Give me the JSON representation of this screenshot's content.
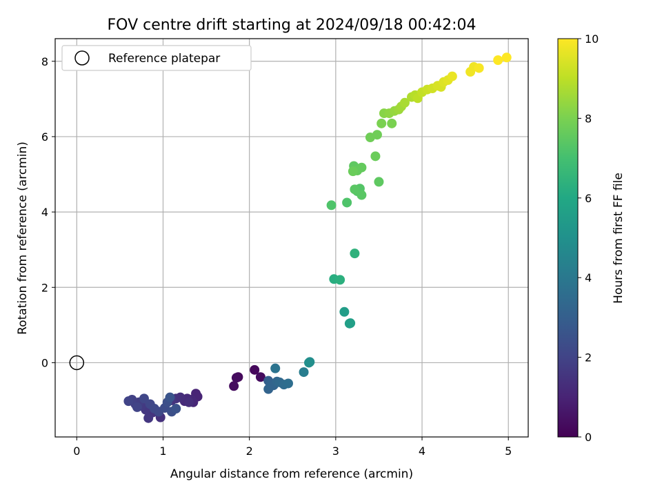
{
  "chart_data": {
    "type": "scatter",
    "title": "FOV centre drift starting at 2024/09/18 00:42:04",
    "xlabel": "Angular distance from reference (arcmin)",
    "ylabel": "Rotation from reference (arcmin)",
    "xlim": [
      -0.25,
      5.23
    ],
    "ylim": [
      -1.97,
      8.6
    ],
    "xticks": [
      0,
      1,
      2,
      3,
      4,
      5
    ],
    "yticks": [
      0,
      2,
      4,
      6,
      8
    ],
    "grid": true,
    "legend": {
      "placement": "upper-left",
      "entries": [
        "Reference platepar"
      ]
    },
    "reference_point": {
      "x": 0,
      "y": 0
    },
    "colorbar": {
      "label": "Hours from first FF file",
      "range": [
        0,
        10
      ],
      "ticks": [
        0,
        2,
        4,
        6,
        8,
        10
      ],
      "colormap": "viridis"
    },
    "points": [
      {
        "x": 1.87,
        "y": -0.38,
        "h": 0.2
      },
      {
        "x": 1.85,
        "y": -0.4,
        "h": 0.3
      },
      {
        "x": 1.82,
        "y": -0.62,
        "h": 0.3
      },
      {
        "x": 2.06,
        "y": -0.19,
        "h": 0.2
      },
      {
        "x": 2.13,
        "y": -0.38,
        "h": 0.3
      },
      {
        "x": 1.38,
        "y": -0.82,
        "h": 1.0
      },
      {
        "x": 1.4,
        "y": -0.9,
        "h": 1.0
      },
      {
        "x": 1.33,
        "y": -0.98,
        "h": 1.1
      },
      {
        "x": 1.35,
        "y": -1.05,
        "h": 1.1
      },
      {
        "x": 1.28,
        "y": -0.95,
        "h": 1.2
      },
      {
        "x": 1.25,
        "y": -1.02,
        "h": 1.2
      },
      {
        "x": 1.2,
        "y": -0.92,
        "h": 1.3
      },
      {
        "x": 1.15,
        "y": -0.95,
        "h": 1.4
      },
      {
        "x": 1.3,
        "y": -1.05,
        "h": 1.3
      },
      {
        "x": 1.1,
        "y": -1.0,
        "h": 1.5
      },
      {
        "x": 0.97,
        "y": -1.45,
        "h": 1.4
      },
      {
        "x": 0.88,
        "y": -1.32,
        "h": 1.5
      },
      {
        "x": 0.83,
        "y": -1.47,
        "h": 1.6
      },
      {
        "x": 0.8,
        "y": -1.25,
        "h": 1.6
      },
      {
        "x": 0.75,
        "y": -1.15,
        "h": 1.7
      },
      {
        "x": 0.72,
        "y": -1.05,
        "h": 1.8
      },
      {
        "x": 0.68,
        "y": -1.1,
        "h": 1.8
      },
      {
        "x": 0.64,
        "y": -0.98,
        "h": 1.9
      },
      {
        "x": 0.6,
        "y": -1.02,
        "h": 2.0
      },
      {
        "x": 0.7,
        "y": -1.18,
        "h": 2.0
      },
      {
        "x": 0.78,
        "y": -0.95,
        "h": 2.1
      },
      {
        "x": 0.85,
        "y": -1.1,
        "h": 2.1
      },
      {
        "x": 0.9,
        "y": -1.22,
        "h": 2.2
      },
      {
        "x": 0.95,
        "y": -1.3,
        "h": 2.2
      },
      {
        "x": 1.02,
        "y": -1.2,
        "h": 2.3
      },
      {
        "x": 1.05,
        "y": -1.05,
        "h": 2.4
      },
      {
        "x": 1.1,
        "y": -1.3,
        "h": 2.4
      },
      {
        "x": 1.15,
        "y": -1.22,
        "h": 2.5
      },
      {
        "x": 1.08,
        "y": -0.92,
        "h": 2.6
      },
      {
        "x": 2.22,
        "y": -0.48,
        "h": 3.0
      },
      {
        "x": 2.25,
        "y": -0.55,
        "h": 3.1
      },
      {
        "x": 2.28,
        "y": -0.6,
        "h": 3.2
      },
      {
        "x": 2.22,
        "y": -0.7,
        "h": 3.2
      },
      {
        "x": 2.32,
        "y": -0.5,
        "h": 3.3
      },
      {
        "x": 2.35,
        "y": -0.52,
        "h": 3.4
      },
      {
        "x": 2.4,
        "y": -0.58,
        "h": 3.5
      },
      {
        "x": 2.45,
        "y": -0.55,
        "h": 3.6
      },
      {
        "x": 2.3,
        "y": -0.15,
        "h": 3.8
      },
      {
        "x": 2.63,
        "y": -0.25,
        "h": 4.2
      },
      {
        "x": 2.7,
        "y": 0.02,
        "h": 4.8
      },
      {
        "x": 2.69,
        "y": 0.0,
        "h": 4.9
      },
      {
        "x": 3.1,
        "y": 1.35,
        "h": 5.5
      },
      {
        "x": 3.17,
        "y": 1.05,
        "h": 5.6
      },
      {
        "x": 3.16,
        "y": 1.04,
        "h": 5.6
      },
      {
        "x": 2.98,
        "y": 2.22,
        "h": 6.2
      },
      {
        "x": 3.05,
        "y": 2.2,
        "h": 6.3
      },
      {
        "x": 3.22,
        "y": 2.9,
        "h": 6.4
      },
      {
        "x": 2.95,
        "y": 4.18,
        "h": 7.2
      },
      {
        "x": 3.13,
        "y": 4.25,
        "h": 7.2
      },
      {
        "x": 3.25,
        "y": 4.55,
        "h": 7.3
      },
      {
        "x": 3.28,
        "y": 4.62,
        "h": 7.3
      },
      {
        "x": 3.3,
        "y": 4.45,
        "h": 7.4
      },
      {
        "x": 3.22,
        "y": 4.6,
        "h": 7.4
      },
      {
        "x": 3.5,
        "y": 4.8,
        "h": 7.5
      },
      {
        "x": 3.21,
        "y": 5.22,
        "h": 7.5
      },
      {
        "x": 3.25,
        "y": 5.1,
        "h": 7.6
      },
      {
        "x": 3.3,
        "y": 5.18,
        "h": 7.6
      },
      {
        "x": 3.2,
        "y": 5.08,
        "h": 7.7
      },
      {
        "x": 3.46,
        "y": 5.48,
        "h": 7.7
      },
      {
        "x": 3.4,
        "y": 5.98,
        "h": 7.8
      },
      {
        "x": 3.48,
        "y": 6.05,
        "h": 7.8
      },
      {
        "x": 3.53,
        "y": 6.35,
        "h": 8.0
      },
      {
        "x": 3.65,
        "y": 6.35,
        "h": 8.0
      },
      {
        "x": 3.56,
        "y": 6.62,
        "h": 8.2
      },
      {
        "x": 3.62,
        "y": 6.62,
        "h": 8.3
      },
      {
        "x": 3.68,
        "y": 6.68,
        "h": 8.4
      },
      {
        "x": 3.73,
        "y": 6.72,
        "h": 8.5
      },
      {
        "x": 3.76,
        "y": 6.8,
        "h": 8.6
      },
      {
        "x": 3.8,
        "y": 6.9,
        "h": 8.7
      },
      {
        "x": 3.88,
        "y": 7.05,
        "h": 8.8
      },
      {
        "x": 3.92,
        "y": 7.1,
        "h": 8.9
      },
      {
        "x": 3.95,
        "y": 7.02,
        "h": 9.0
      },
      {
        "x": 4.0,
        "y": 7.18,
        "h": 9.1
      },
      {
        "x": 4.06,
        "y": 7.25,
        "h": 9.2
      },
      {
        "x": 4.12,
        "y": 7.28,
        "h": 9.3
      },
      {
        "x": 4.18,
        "y": 7.35,
        "h": 9.4
      },
      {
        "x": 4.22,
        "y": 7.32,
        "h": 9.4
      },
      {
        "x": 4.25,
        "y": 7.45,
        "h": 9.5
      },
      {
        "x": 4.3,
        "y": 7.5,
        "h": 9.6
      },
      {
        "x": 4.35,
        "y": 7.6,
        "h": 9.7
      },
      {
        "x": 4.56,
        "y": 7.72,
        "h": 9.8
      },
      {
        "x": 4.6,
        "y": 7.85,
        "h": 9.8
      },
      {
        "x": 4.66,
        "y": 7.82,
        "h": 9.9
      },
      {
        "x": 4.88,
        "y": 8.03,
        "h": 10.0
      },
      {
        "x": 4.98,
        "y": 8.1,
        "h": 10.0
      }
    ]
  }
}
